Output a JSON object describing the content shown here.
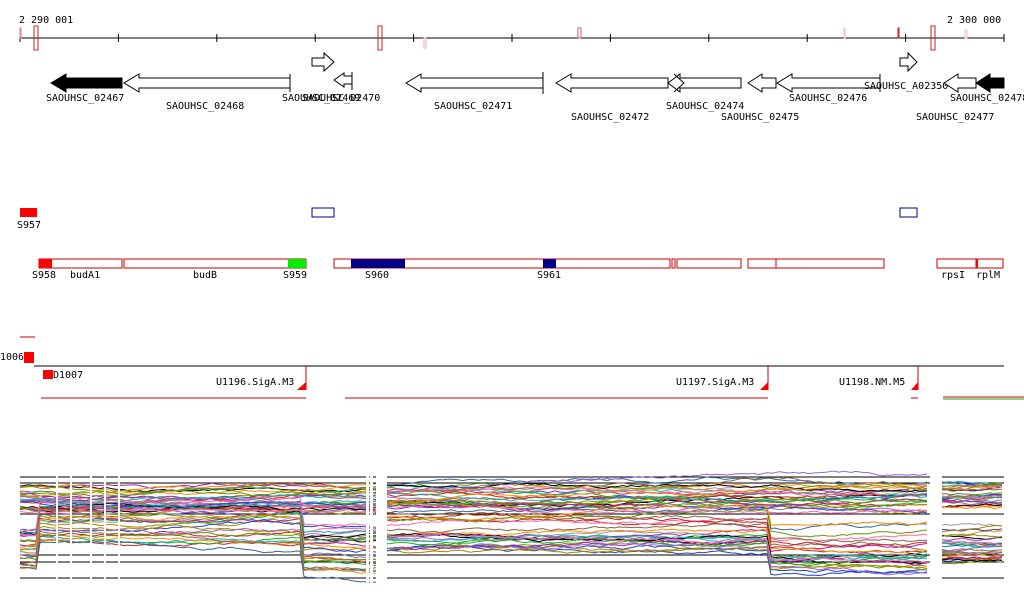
{
  "ruler": {
    "start_label": "2 290 001",
    "end_label": "2 300 000"
  },
  "genes": [
    {
      "label": "SAOUHSC_02467",
      "dir": "left",
      "filled": true,
      "start": 2290301,
      "end": 2291361
    },
    {
      "label": "SAOUHSC_02468",
      "dir": "left",
      "filled": false,
      "start": 2291361,
      "end": 2294051
    },
    {
      "label": "SAOUHSC_02469",
      "dir": "left",
      "filled": false,
      "start": 2294001,
      "end": 2294371
    },
    {
      "label": "SAOUHSC_02469",
      "dir": "right",
      "filled": false,
      "start": 2292941,
      "end": 2293171
    },
    {
      "label": "SAOUHSC_02470",
      "dir": "left",
      "filled": false,
      "start": 2293141,
      "end": 2293331
    },
    {
      "label": "SAOUHSC_02471",
      "dir": "left",
      "filled": false,
      "start": 2293871,
      "end": 2295281
    },
    {
      "label": "SAOUHSC_02472",
      "dir": "left",
      "filled": false,
      "start": 2295391,
      "end": 2296511
    },
    {
      "label": "SAOUHSC_02474",
      "dir": "left",
      "filled": false,
      "start": 2296511,
      "end": 2297231
    },
    {
      "label": "SAOUHSC_02475",
      "dir": "left",
      "filled": false,
      "start": 2297301,
      "end": 2297581
    },
    {
      "label": "SAOUHSC_02476",
      "dir": "left",
      "filled": false,
      "start": 2297591,
      "end": 2298681
    },
    {
      "label": "SAOUHSC_A02350",
      "dir": "right",
      "filled": false,
      "start": 2298811,
      "end": 2299001
    },
    {
      "label": "SAOUHSC_02477",
      "dir": "left",
      "filled": false,
      "start": 2299141,
      "end": 2299591
    },
    {
      "label": "SAOUHSC_02478",
      "dir": "left",
      "filled": true,
      "start": 2299591,
      "end": 2299881
    }
  ],
  "features": {
    "small_labels": [
      "S957"
    ],
    "segment_labels": [
      "S958",
      "budA1",
      "budB",
      "S959",
      "S960",
      "S961",
      "rpsI",
      "rplM"
    ]
  },
  "regulons": {
    "labels": [
      "1006",
      "D1007",
      "U1196.SigA.M3",
      "U1197.SigA.M3",
      "U1198.NM.M5"
    ]
  },
  "colors": {
    "gene_filled": "#000000",
    "segment_outline": "#cc0000",
    "red_feature": "#ff0000",
    "green_feature": "#00ee00",
    "navy_feature": "#000088",
    "regulon_line": "#cc0000"
  }
}
